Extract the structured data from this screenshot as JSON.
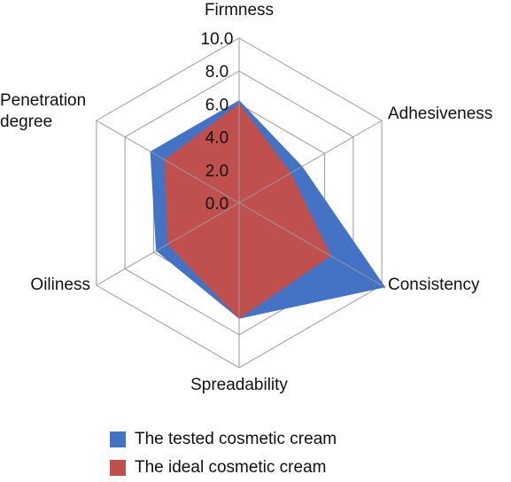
{
  "chart_data": {
    "type": "radar",
    "title": "",
    "axes": [
      "Firmness",
      "Adhesiveness",
      "Consistency",
      "Spreadability",
      "Oiliness",
      "Penetration degree"
    ],
    "axis_label_lines": [
      [
        "Firmness"
      ],
      [
        "Adhesiveness"
      ],
      [
        "Consistency"
      ],
      [
        "Spreadability"
      ],
      [
        "Oiliness"
      ],
      [
        "Penetration",
        "degree"
      ]
    ],
    "range": [
      0,
      10
    ],
    "ticks": [
      "0.0",
      "2.0",
      "4.0",
      "6.0",
      "8.0",
      "10.0"
    ],
    "tick_values": [
      0,
      2,
      4,
      6,
      8,
      10
    ],
    "series": [
      {
        "name": "The tested cosmetic cream",
        "color": "#4472C4",
        "values": [
          6.2,
          4.4,
          10.2,
          7.0,
          5.8,
          6.2
        ]
      },
      {
        "name": "The ideal cosmetic cream",
        "color": "#C0504D",
        "values": [
          6.0,
          3.6,
          6.4,
          7.0,
          5.0,
          5.2
        ]
      }
    ],
    "grid": true,
    "legend": "bottom"
  }
}
